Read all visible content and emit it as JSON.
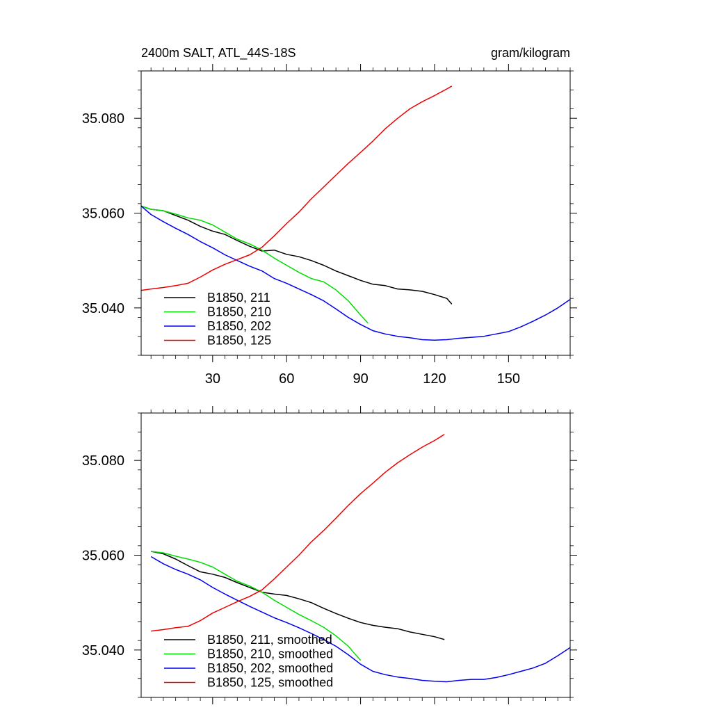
{
  "title_left": "2400m SALT, ATL_44S-18S",
  "title_right": "gram/kilogram",
  "chart_data": [
    {
      "type": "line",
      "title": "2400m SALT, ATL_44S-18S",
      "units": "gram/kilogram",
      "xlim": [
        1,
        175
      ],
      "ylim": [
        35.03,
        35.09
      ],
      "x_ticks": [
        30,
        60,
        90,
        120,
        150
      ],
      "x_tick_labels": [
        "30",
        "60",
        "90",
        "120",
        "150"
      ],
      "y_ticks": [
        35.04,
        35.06,
        35.08
      ],
      "y_tick_labels": [
        "35.040",
        "35.060",
        "35.080"
      ],
      "legend_position": "bottom-left",
      "series": [
        {
          "name": "B1850, 211",
          "color": "#000000",
          "x": [
            1,
            5,
            10,
            15,
            20,
            25,
            30,
            35,
            40,
            45,
            50,
            55,
            60,
            65,
            70,
            75,
            80,
            85,
            90,
            95,
            100,
            105,
            110,
            115,
            120,
            125,
            127
          ],
          "y": [
            35.0615,
            35.0608,
            35.0605,
            35.0595,
            35.0585,
            35.0572,
            35.0562,
            35.0555,
            35.0542,
            35.053,
            35.052,
            35.0522,
            35.0513,
            35.0508,
            35.05,
            35.049,
            35.0478,
            35.0468,
            35.0458,
            35.045,
            35.0447,
            35.044,
            35.0438,
            35.0435,
            35.0428,
            35.042,
            35.0408
          ]
        },
        {
          "name": "B1850, 210",
          "color": "#00dd00",
          "x": [
            1,
            5,
            10,
            15,
            20,
            25,
            30,
            35,
            40,
            45,
            50,
            55,
            60,
            65,
            70,
            75,
            80,
            85,
            90,
            93
          ],
          "y": [
            35.0615,
            35.0608,
            35.0605,
            35.0598,
            35.059,
            35.0585,
            35.0575,
            35.056,
            35.0545,
            35.0535,
            35.0522,
            35.0505,
            35.049,
            35.0475,
            35.0462,
            35.0455,
            35.0438,
            35.0415,
            35.0385,
            35.0368
          ]
        },
        {
          "name": "B1850, 202",
          "color": "#0000ee",
          "x": [
            1,
            5,
            10,
            15,
            20,
            25,
            30,
            35,
            40,
            45,
            50,
            55,
            60,
            65,
            70,
            75,
            80,
            85,
            90,
            95,
            100,
            105,
            110,
            115,
            120,
            125,
            130,
            135,
            140,
            145,
            150,
            155,
            160,
            165,
            170,
            175
          ],
          "y": [
            35.0615,
            35.0597,
            35.0582,
            35.0568,
            35.0555,
            35.054,
            35.0527,
            35.0512,
            35.05,
            35.0488,
            35.0478,
            35.0462,
            35.0452,
            35.044,
            35.0428,
            35.0415,
            35.0398,
            35.038,
            35.0365,
            35.0352,
            35.0345,
            35.034,
            35.0337,
            35.0333,
            35.0332,
            35.0333,
            35.0336,
            35.0338,
            35.034,
            35.0345,
            35.035,
            35.036,
            35.0372,
            35.0385,
            35.04,
            35.0418
          ]
        },
        {
          "name": "B1850, 125",
          "color": "#ee0000",
          "x": [
            1,
            5,
            10,
            15,
            20,
            25,
            30,
            35,
            40,
            45,
            50,
            55,
            60,
            65,
            70,
            75,
            80,
            85,
            90,
            95,
            100,
            105,
            110,
            115,
            120,
            125,
            127
          ],
          "y": [
            35.0437,
            35.044,
            35.0443,
            35.0447,
            35.0452,
            35.0465,
            35.048,
            35.0492,
            35.0502,
            35.0512,
            35.0528,
            35.0552,
            35.0578,
            35.0602,
            35.063,
            35.0655,
            35.068,
            35.0705,
            35.0728,
            35.0752,
            35.0778,
            35.08,
            35.082,
            35.0835,
            35.0848,
            35.0862,
            35.0868
          ]
        }
      ]
    },
    {
      "type": "line",
      "xlim": [
        1,
        175
      ],
      "ylim": [
        35.03,
        35.09
      ],
      "x_ticks": [
        30,
        60,
        90,
        120,
        150
      ],
      "x_tick_labels": [],
      "y_ticks": [
        35.04,
        35.06,
        35.08
      ],
      "y_tick_labels": [
        "35.040",
        "35.060",
        "35.080"
      ],
      "legend_position": "bottom-left",
      "series": [
        {
          "name": "B1850, 211, smoothed",
          "color": "#000000",
          "x": [
            5,
            10,
            15,
            20,
            25,
            30,
            35,
            40,
            45,
            50,
            55,
            60,
            65,
            70,
            75,
            80,
            85,
            90,
            95,
            100,
            105,
            110,
            115,
            120,
            124
          ],
          "y": [
            35.0608,
            35.0603,
            35.0592,
            35.0578,
            35.0565,
            35.056,
            35.0553,
            35.0542,
            35.0532,
            35.0522,
            35.0518,
            35.0515,
            35.0508,
            35.05,
            35.0488,
            35.0477,
            35.0467,
            35.0458,
            35.0452,
            35.0448,
            35.0445,
            35.0438,
            35.0433,
            35.0428,
            35.0422
          ]
        },
        {
          "name": "B1850, 210, smoothed",
          "color": "#00dd00",
          "x": [
            5,
            10,
            15,
            20,
            25,
            30,
            35,
            40,
            45,
            50,
            55,
            60,
            65,
            70,
            75,
            80,
            85,
            90
          ],
          "y": [
            35.0608,
            35.0605,
            35.0598,
            35.0592,
            35.0585,
            35.0575,
            35.056,
            35.0545,
            35.0535,
            35.0522,
            35.0505,
            35.049,
            35.0475,
            35.0462,
            35.0448,
            35.043,
            35.0408,
            35.0378
          ]
        },
        {
          "name": "B1850, 202, smoothed",
          "color": "#0000ee",
          "x": [
            5,
            10,
            15,
            20,
            25,
            30,
            35,
            40,
            45,
            50,
            55,
            60,
            65,
            70,
            75,
            80,
            85,
            90,
            95,
            100,
            105,
            110,
            115,
            120,
            125,
            130,
            135,
            140,
            145,
            150,
            155,
            160,
            165,
            170,
            175
          ],
          "y": [
            35.0597,
            35.0582,
            35.057,
            35.056,
            35.0548,
            35.0532,
            35.0518,
            35.0505,
            35.0492,
            35.048,
            35.0468,
            35.0458,
            35.0447,
            35.0435,
            35.0422,
            35.0408,
            35.039,
            35.037,
            35.0355,
            35.0348,
            35.0343,
            35.034,
            35.0336,
            35.0334,
            35.0333,
            35.0336,
            35.0338,
            35.0338,
            35.0342,
            35.0348,
            35.0355,
            35.0362,
            35.0372,
            35.0388,
            35.0405
          ]
        },
        {
          "name": "B1850, 125, smoothed",
          "color": "#ee0000",
          "x": [
            5,
            10,
            15,
            20,
            25,
            30,
            35,
            40,
            45,
            50,
            55,
            60,
            65,
            70,
            75,
            80,
            85,
            90,
            95,
            100,
            105,
            110,
            115,
            120,
            124
          ],
          "y": [
            35.044,
            35.0443,
            35.0447,
            35.045,
            35.0462,
            35.0478,
            35.049,
            35.0502,
            35.0513,
            35.0527,
            35.055,
            35.0575,
            35.06,
            35.0628,
            35.0652,
            35.0678,
            35.0705,
            35.073,
            35.0752,
            35.0775,
            35.0795,
            35.0812,
            35.0828,
            35.0842,
            35.0855
          ]
        }
      ]
    }
  ]
}
